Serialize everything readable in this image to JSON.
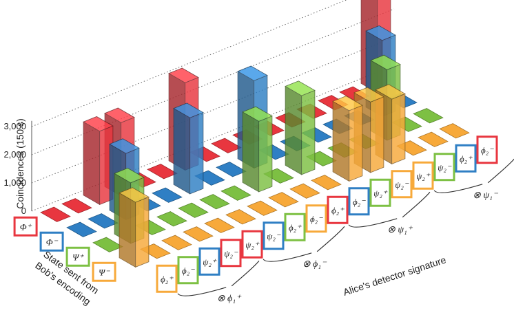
{
  "chart_data": {
    "type": "bar",
    "subtype": "3d-bar",
    "title": "",
    "ylabel": "Coincidences (150 s)",
    "yticks": [
      "0",
      "1,000",
      "2,000",
      "3,000"
    ],
    "ylim": [
      0,
      3400
    ],
    "row_axis_label": [
      "State sent from",
      "Bob's encoding"
    ],
    "col_axis_label": "Alice's detector signature",
    "rows": [
      {
        "label": "Φ⁺",
        "color": "#e8363f"
      },
      {
        "label": "Φ⁻",
        "color": "#2f7fc4"
      },
      {
        "label": "Ψ⁺",
        "color": "#7dc043"
      },
      {
        "label": "Ψ⁻",
        "color": "#f7a93a"
      }
    ],
    "columns": [
      {
        "label": "ϕ₂⁺",
        "color": "#f7a93a"
      },
      {
        "label": "ϕ₂⁻",
        "color": "#7dc043"
      },
      {
        "label": "ψ₂⁺",
        "color": "#2f7fc4"
      },
      {
        "label": "ψ₂⁻",
        "color": "#e8363f"
      },
      {
        "label": "ψ₂⁺",
        "color": "#e8363f"
      },
      {
        "label": "ψ₂⁻",
        "color": "#2f7fc4"
      },
      {
        "label": "ϕ₂⁺",
        "color": "#7dc043"
      },
      {
        "label": "ϕ₂⁻",
        "color": "#f7a93a"
      },
      {
        "label": "ϕ₂⁺",
        "color": "#e8363f"
      },
      {
        "label": "ϕ₂⁻",
        "color": "#2f7fc4"
      },
      {
        "label": "ψ₂⁺",
        "color": "#7dc043"
      },
      {
        "label": "ψ₂⁻",
        "color": "#f7a93a"
      },
      {
        "label": "ψ₂⁺",
        "color": "#f7a93a"
      },
      {
        "label": "ψ₂⁻",
        "color": "#7dc043"
      },
      {
        "label": "ϕ₂⁺",
        "color": "#2f7fc4"
      },
      {
        "label": "ϕ₂⁻",
        "color": "#e8363f"
      }
    ],
    "groups": [
      "⊗ ϕ₁⁺",
      "⊗ ϕ₁⁻",
      "⊗ ψ₁⁺",
      "⊗ ψ₁⁻"
    ],
    "values": [
      [
        0,
        0,
        2600,
        2600,
        0,
        0,
        3100,
        0,
        0,
        0,
        0,
        0,
        0,
        0,
        0,
        3400
      ],
      [
        0,
        0,
        2350,
        0,
        0,
        2700,
        0,
        0,
        3100,
        0,
        0,
        0,
        0,
        0,
        2700,
        0
      ],
      [
        0,
        2150,
        0,
        0,
        0,
        0,
        0,
        2500,
        0,
        2800,
        0,
        0,
        0,
        2500,
        0,
        0
      ],
      [
        2300,
        0,
        0,
        0,
        0,
        0,
        0,
        0,
        0,
        0,
        2500,
        2500,
        2300,
        0,
        0,
        0
      ]
    ],
    "grid": true,
    "legend": "none"
  }
}
